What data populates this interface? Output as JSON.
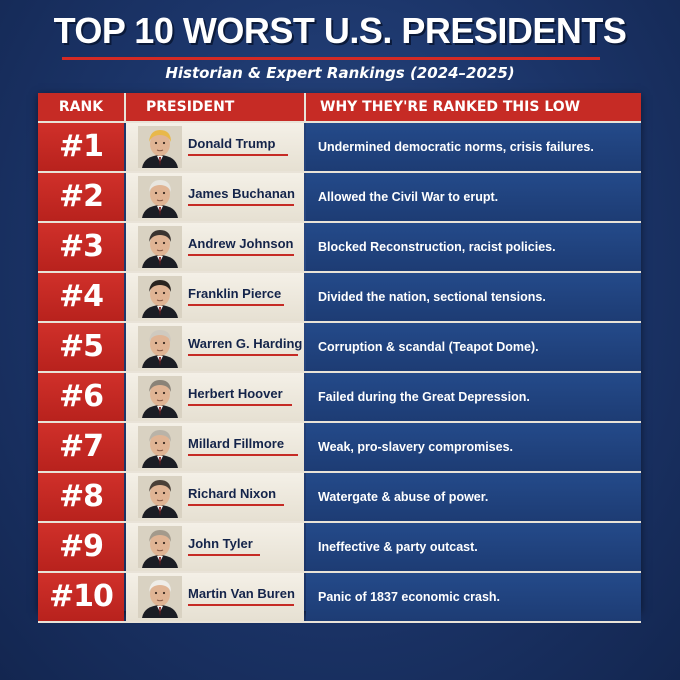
{
  "title": "TOP 10 WORST U.S. PRESIDENTS",
  "subtitle": "Historian & Expert Rankings (2024–2025)",
  "columns": {
    "rank": "RANK",
    "president": "PRESIDENT",
    "why": "WHY THEY'RE RANKED THIS LOW"
  },
  "rows": [
    {
      "rank": "#1",
      "name": "Donald Trump",
      "reason": "Undermined democratic norms, crisis failures.",
      "hair": "#e8b84a"
    },
    {
      "rank": "#2",
      "name": "James Buchanan",
      "reason": "Allowed the Civil War to erupt.",
      "hair": "#e8e6e0"
    },
    {
      "rank": "#3",
      "name": "Andrew Johnson",
      "reason": "Blocked Reconstruction, racist policies.",
      "hair": "#3a3430"
    },
    {
      "rank": "#4",
      "name": "Franklin Pierce",
      "reason": "Divided the nation, sectional tensions.",
      "hair": "#2a2420"
    },
    {
      "rank": "#5",
      "name": "Warren G. Harding",
      "reason": "Corruption & scandal (Teapot Dome).",
      "hair": "#cfcac0"
    },
    {
      "rank": "#6",
      "name": "Herbert Hoover",
      "reason": "Failed during the Great Depression.",
      "hair": "#8a8378"
    },
    {
      "rank": "#7",
      "name": "Millard Fillmore",
      "reason": "Weak, pro-slavery compromises.",
      "hair": "#b9b3a8"
    },
    {
      "rank": "#8",
      "name": "Richard Nixon",
      "reason": "Watergate & abuse of power.",
      "hair": "#4a4038"
    },
    {
      "rank": "#9",
      "name": "John Tyler",
      "reason": "Ineffective & party outcast.",
      "hair": "#a39a8c"
    },
    {
      "rank": "#10",
      "name": "Martin Van Buren",
      "reason": "Panic of 1837 economic crash.",
      "hair": "#efede8"
    }
  ],
  "colors": {
    "accent_red": "#c62b25",
    "navy": "#1d3c74",
    "cream": "#f1ede3"
  }
}
